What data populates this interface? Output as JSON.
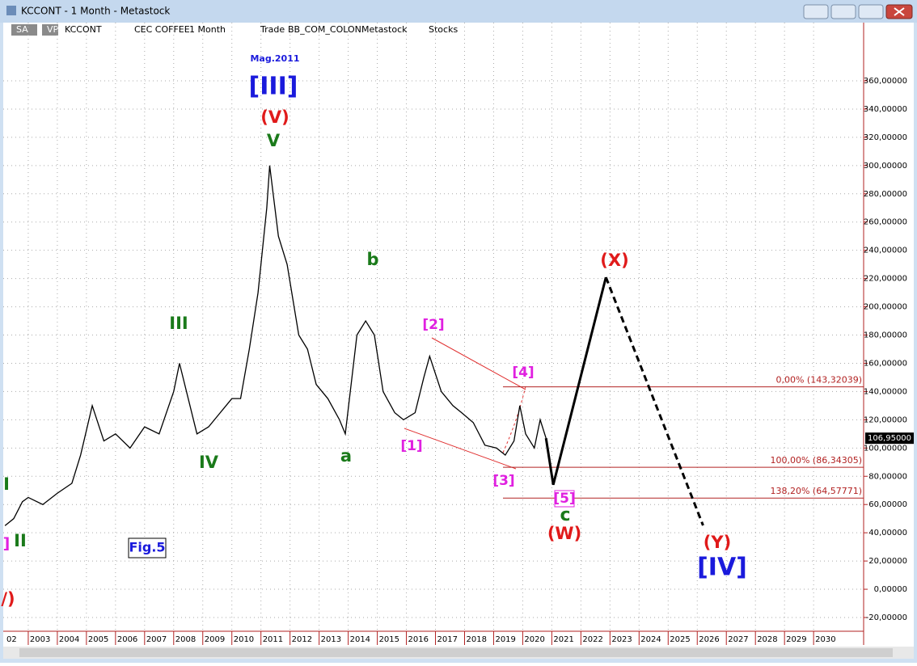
{
  "window": {
    "title": "KCCONT - 1 Month - Metastock"
  },
  "toolbar": [
    "SA",
    "VP",
    "KCCONT",
    "CEC COFFEE",
    "1 Month",
    "Trade",
    "BB_COM_COLON",
    "Metastock",
    "Stocks"
  ],
  "chart_data": {
    "type": "line",
    "x": [
      2002.2,
      2002.5,
      2002.8,
      2003.0,
      2003.5,
      2004.0,
      2004.5,
      2004.8,
      2005.2,
      2005.6,
      2006.0,
      2006.5,
      2007.0,
      2007.5,
      2008.0,
      2008.2,
      2008.5,
      2008.8,
      2009.2,
      2009.6,
      2010.0,
      2010.3,
      2010.6,
      2010.9,
      2011.2,
      2011.3,
      2011.6,
      2011.9,
      2012.3,
      2012.6,
      2012.9,
      2013.3,
      2013.7,
      2013.9,
      2014.3,
      2014.6,
      2014.9,
      2015.2,
      2015.6,
      2015.9,
      2016.3,
      2016.6,
      2016.8,
      2017.2,
      2017.6,
      2017.9,
      2018.3,
      2018.7,
      2019.1,
      2019.4,
      2019.7,
      2019.9,
      2020.1,
      2020.4,
      2020.6,
      2020.8
    ],
    "series": [
      {
        "color": "#000000",
        "values": [
          45,
          50,
          62,
          65,
          60,
          68,
          75,
          95,
          130,
          105,
          110,
          100,
          115,
          110,
          140,
          160,
          135,
          110,
          115,
          125,
          135,
          135,
          170,
          210,
          270,
          300,
          250,
          230,
          180,
          170,
          145,
          135,
          120,
          110,
          180,
          190,
          180,
          140,
          125,
          120,
          125,
          150,
          165,
          140,
          130,
          125,
          118,
          102,
          100,
          95,
          105,
          130,
          110,
          100,
          120,
          107
        ]
      }
    ],
    "projection": {
      "color": "#000000",
      "x": [
        2020.8,
        2021.05,
        2022.86,
        2026.2
      ],
      "values": [
        107,
        74,
        220.9,
        45.2
      ]
    },
    "levels": [
      {
        "value": 143.32039,
        "label": "0,00% (143,32039)"
      },
      {
        "value": 86.34305,
        "label": "100,00% (86,34305)"
      },
      {
        "value": 64.57771,
        "label": "138,20% (64,57771)"
      }
    ],
    "level_color": "#b22222",
    "last_price": {
      "value": 106.95,
      "label": "106,95000"
    },
    "xlim": [
      2002.14,
      2031.72
    ],
    "ylim": [
      -20,
      410
    ],
    "grid": true,
    "xticks": [
      {
        "value": 2002,
        "label": "02"
      },
      2003,
      2004,
      2005,
      2006,
      2007,
      2008,
      2009,
      2010,
      2011,
      2012,
      2013,
      2014,
      2015,
      2016,
      2017,
      2018,
      2019,
      2020,
      2021,
      2022,
      2023,
      2024,
      2025,
      2026,
      2027,
      2028,
      2029,
      2030
    ],
    "yticks": [
      {
        "value": -20,
        "label": "-20,00000"
      },
      {
        "value": 0,
        "label": "0,00000"
      },
      {
        "value": 20,
        "label": "20,00000"
      },
      {
        "value": 40,
        "label": "40,00000"
      },
      {
        "value": 60,
        "label": "60,00000"
      },
      {
        "value": 80,
        "label": "80,00000"
      },
      {
        "value": 100,
        "label": "100,00000"
      },
      {
        "value": 120,
        "label": "120,00000"
      },
      {
        "value": 140,
        "label": "140,00000"
      },
      {
        "value": 160,
        "label": "160,00000"
      },
      {
        "value": 180,
        "label": "180,00000"
      },
      {
        "value": 200,
        "label": "200,00000"
      },
      {
        "value": 220,
        "label": "220,00000"
      },
      {
        "value": 240,
        "label": "240,00000"
      },
      {
        "value": 260,
        "label": "260,00000"
      },
      {
        "value": 280,
        "label": "280,00000"
      },
      {
        "value": 300,
        "label": "300,00000"
      },
      {
        "value": 320,
        "label": "320,00000"
      },
      {
        "value": 340,
        "label": "340,00000"
      },
      {
        "value": 360,
        "label": "360,00000"
      }
    ],
    "annotations": [
      {
        "text": "Mag.2011",
        "color": "#1a1adc"
      },
      {
        "text": "[III]",
        "color": "#1a1adc"
      },
      {
        "text": "(V)",
        "color": "#e01a1a"
      },
      {
        "text": "V",
        "color": "#1a7a1a"
      },
      {
        "text": "b",
        "color": "#1a7a1a"
      },
      {
        "text": "III",
        "color": "#1a7a1a"
      },
      {
        "text": "IV",
        "color": "#1a7a1a"
      },
      {
        "text": "a",
        "color": "#1a7a1a"
      },
      {
        "text": "I",
        "color": "#1a7a1a"
      },
      {
        "text": "II",
        "color": "#1a7a1a"
      },
      {
        "text": "]",
        "color": "#e020e0"
      },
      {
        "text": "/)",
        "color": "#e01a1a"
      },
      {
        "text": "[2]",
        "color": "#e020e0"
      },
      {
        "text": "[4]",
        "color": "#e020e0"
      },
      {
        "text": "[1]",
        "color": "#e020e0"
      },
      {
        "text": "[3]",
        "color": "#e020e0"
      },
      {
        "text": "[5]",
        "color": "#e020e0"
      },
      {
        "text": "c",
        "color": "#1a7a1a"
      },
      {
        "text": "(W)",
        "color": "#e01a1a"
      },
      {
        "text": "(X)",
        "color": "#e01a1a"
      },
      {
        "text": "(Y)",
        "color": "#e01a1a"
      },
      {
        "text": "[IV]",
        "color": "#1a1adc"
      },
      {
        "text": "Fig.5",
        "color": "#1a1adc"
      }
    ]
  }
}
